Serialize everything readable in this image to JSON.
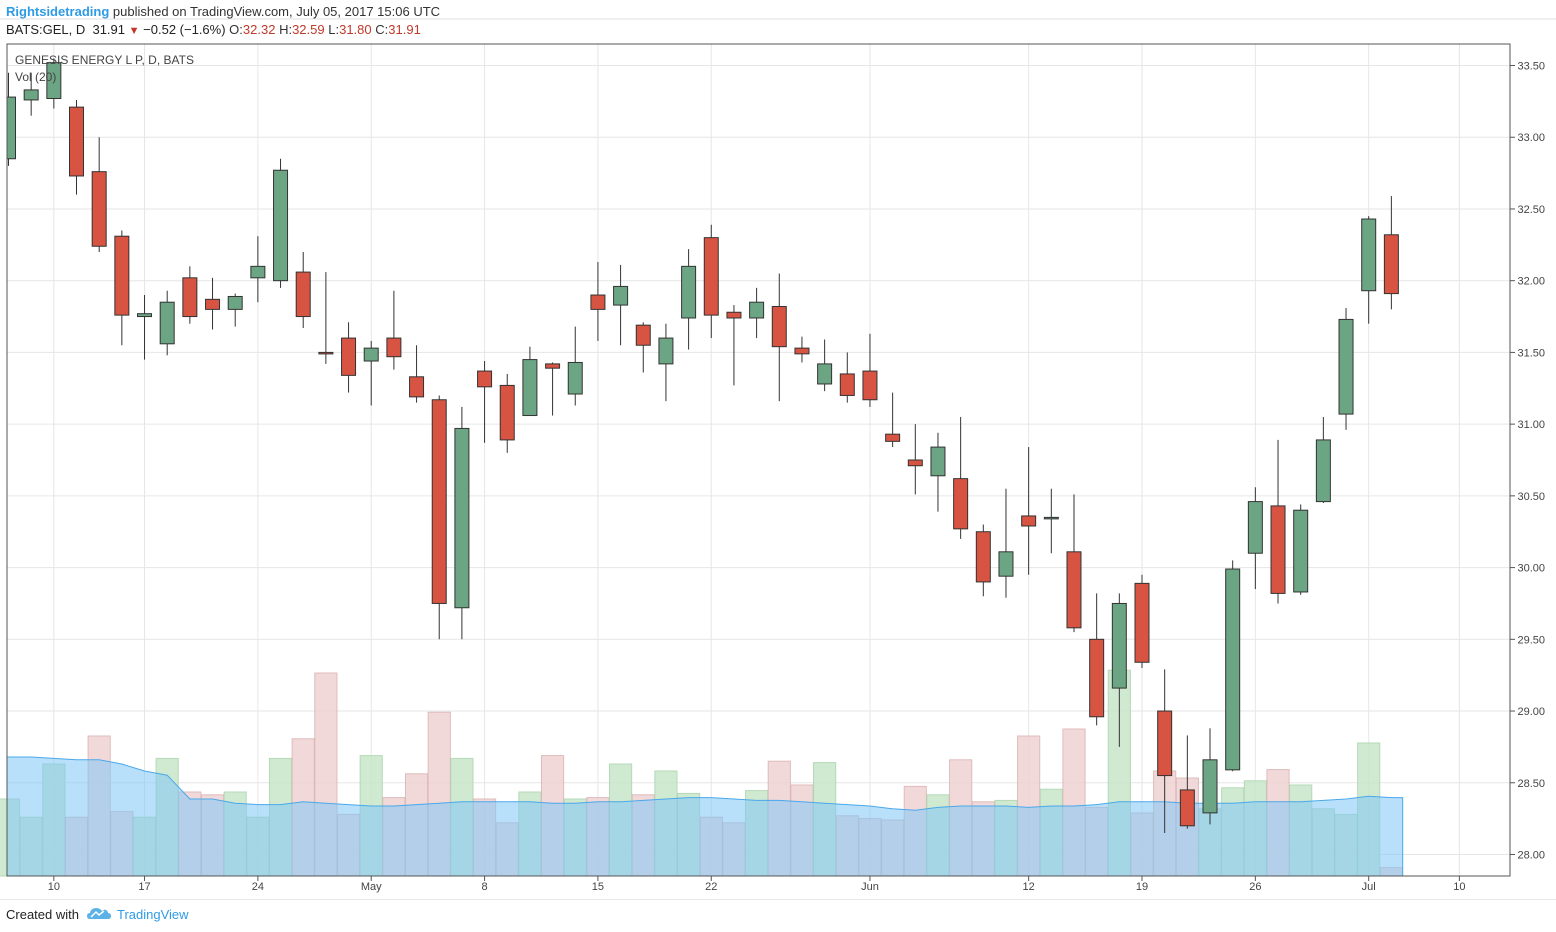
{
  "header": {
    "author": "Rightsidetrading",
    "published": "published on TradingView.com, July 05, 2017 15:06 UTC",
    "symbol": "BATS:GEL, D",
    "last": "31.91",
    "change_icon": "down-triangle-icon",
    "change": "−0.52 (−1.6%)",
    "o_label": "O:",
    "o": "32.32",
    "h_label": "H:",
    "h": "32.59",
    "l_label": "L:",
    "l": "31.80",
    "c_label": "C:",
    "c": "31.91"
  },
  "legend": {
    "title": "GENESIS ENERGY L P, D, BATS",
    "indicator": "Vol (20)"
  },
  "footer": {
    "created": "Created with",
    "logo_icon": "tradingview-cloud-icon",
    "brand": "TradingView"
  },
  "colors": {
    "up": "#6ba583",
    "down": "#d75442",
    "vol_up": "#c8e6c9",
    "vol_down": "#efd3d3",
    "vol_ma": "#7fc6f5",
    "grid": "#e6e6e6",
    "axis_text": "#444444",
    "accent": "#2e9be6"
  },
  "chart_data": {
    "type": "candlestick",
    "title": "GENESIS ENERGY L P, D, BATS",
    "y_axis": {
      "position": "right",
      "ylim": [
        27.85,
        33.65
      ],
      "ticks": [
        "28.00",
        "28.50",
        "29.00",
        "29.50",
        "30.00",
        "30.50",
        "31.00",
        "31.50",
        "32.00",
        "32.50",
        "33.00",
        "33.50"
      ]
    },
    "x_tick_labels": [
      {
        "label": "10",
        "index": 2
      },
      {
        "label": "17",
        "index": 6
      },
      {
        "label": "24",
        "index": 11
      },
      {
        "label": "May",
        "index": 16
      },
      {
        "label": "8",
        "index": 21
      },
      {
        "label": "15",
        "index": 26
      },
      {
        "label": "22",
        "index": 31
      },
      {
        "label": "Jun",
        "index": 38
      },
      {
        "label": "12",
        "index": 45
      },
      {
        "label": "19",
        "index": 50
      },
      {
        "label": "26",
        "index": 55
      },
      {
        "label": "Jul",
        "index": 60
      },
      {
        "label": "10",
        "index": 64
      }
    ],
    "grid": true,
    "ohlc": [
      [
        32.85,
        33.45,
        32.8,
        33.28
      ],
      [
        33.26,
        33.45,
        33.15,
        33.33
      ],
      [
        33.27,
        33.55,
        33.2,
        33.52
      ],
      [
        33.21,
        33.26,
        32.6,
        32.73
      ],
      [
        32.76,
        33.0,
        32.2,
        32.24
      ],
      [
        32.31,
        32.35,
        31.55,
        31.76
      ],
      [
        31.75,
        31.9,
        31.45,
        31.77
      ],
      [
        31.56,
        31.93,
        31.48,
        31.85
      ],
      [
        32.02,
        32.1,
        31.7,
        31.75
      ],
      [
        31.87,
        32.02,
        31.66,
        31.8
      ],
      [
        31.8,
        31.91,
        31.68,
        31.89
      ],
      [
        32.02,
        32.31,
        31.85,
        32.1
      ],
      [
        32.0,
        32.85,
        31.95,
        32.77
      ],
      [
        32.06,
        32.2,
        31.67,
        31.75
      ],
      [
        31.5,
        32.06,
        31.42,
        31.49
      ],
      [
        31.6,
        31.71,
        31.22,
        31.34
      ],
      [
        31.44,
        31.58,
        31.13,
        31.53
      ],
      [
        31.6,
        31.93,
        31.38,
        31.47
      ],
      [
        31.33,
        31.55,
        31.15,
        31.19
      ],
      [
        31.17,
        31.2,
        29.5,
        29.75
      ],
      [
        29.72,
        31.12,
        29.5,
        30.97
      ],
      [
        31.37,
        31.44,
        30.87,
        31.26
      ],
      [
        31.27,
        31.35,
        30.8,
        30.89
      ],
      [
        31.06,
        31.54,
        31.06,
        31.45
      ],
      [
        31.42,
        31.43,
        31.06,
        31.39
      ],
      [
        31.21,
        31.68,
        31.13,
        31.43
      ],
      [
        31.9,
        32.13,
        31.58,
        31.8
      ],
      [
        31.83,
        32.11,
        31.55,
        31.96
      ],
      [
        31.69,
        31.71,
        31.36,
        31.55
      ],
      [
        31.42,
        31.7,
        31.16,
        31.6
      ],
      [
        31.74,
        32.22,
        31.52,
        32.1
      ],
      [
        32.3,
        32.39,
        31.6,
        31.76
      ],
      [
        31.78,
        31.83,
        31.27,
        31.74
      ],
      [
        31.74,
        31.95,
        31.6,
        31.85
      ],
      [
        31.82,
        32.05,
        31.16,
        31.54
      ],
      [
        31.53,
        31.61,
        31.43,
        31.49
      ],
      [
        31.28,
        31.59,
        31.23,
        31.42
      ],
      [
        31.35,
        31.5,
        31.15,
        31.2
      ],
      [
        31.37,
        31.63,
        31.12,
        31.17
      ],
      [
        30.93,
        31.22,
        30.84,
        30.88
      ],
      [
        30.75,
        31.0,
        30.51,
        30.71
      ],
      [
        30.64,
        30.94,
        30.39,
        30.84
      ],
      [
        30.62,
        31.05,
        30.2,
        30.27
      ],
      [
        30.25,
        30.3,
        29.8,
        29.9
      ],
      [
        29.94,
        30.55,
        29.79,
        30.11
      ],
      [
        30.36,
        30.84,
        29.95,
        30.29
      ],
      [
        30.34,
        30.55,
        30.1,
        30.35
      ],
      [
        30.11,
        30.51,
        29.55,
        29.58
      ],
      [
        29.5,
        29.82,
        28.9,
        28.96
      ],
      [
        29.16,
        29.82,
        28.75,
        29.75
      ],
      [
        29.89,
        29.95,
        29.3,
        29.34
      ],
      [
        29.0,
        29.29,
        28.15,
        28.55
      ],
      [
        28.45,
        28.83,
        28.18,
        28.2
      ],
      [
        28.29,
        28.88,
        28.21,
        28.66
      ],
      [
        28.59,
        30.05,
        28.58,
        29.99
      ],
      [
        30.1,
        30.56,
        29.85,
        30.46
      ],
      [
        30.43,
        30.89,
        29.75,
        29.82
      ],
      [
        29.83,
        30.44,
        29.81,
        30.4
      ],
      [
        30.46,
        31.05,
        30.45,
        30.89
      ],
      [
        31.07,
        31.81,
        30.96,
        31.73
      ],
      [
        31.93,
        32.45,
        31.7,
        32.43
      ],
      [
        32.32,
        32.59,
        31.8,
        31.91
      ]
    ],
    "volume_ma_period": 20,
    "volume_relative": [
      0.55,
      0.42,
      0.8,
      0.42,
      1.0,
      0.46,
      0.42,
      0.84,
      0.6,
      0.58,
      0.6,
      0.42,
      0.84,
      0.98,
      1.45,
      0.44,
      0.86,
      0.56,
      0.73,
      1.17,
      0.84,
      0.55,
      0.38,
      0.6,
      0.86,
      0.55,
      0.56,
      0.8,
      0.58,
      0.75,
      0.59,
      0.42,
      0.38,
      0.61,
      0.82,
      0.65,
      0.81,
      0.43,
      0.41,
      0.4,
      0.64,
      0.58,
      0.83,
      0.53,
      0.54,
      1.0,
      0.62,
      1.05,
      0.49,
      1.47,
      0.45,
      0.75,
      0.7,
      0.48,
      0.63,
      0.68,
      0.76,
      0.65,
      0.48,
      0.44,
      0.95,
      0.06
    ],
    "volume_ma_relative": [
      0.85,
      0.85,
      0.84,
      0.83,
      0.83,
      0.8,
      0.75,
      0.72,
      0.55,
      0.55,
      0.52,
      0.51,
      0.51,
      0.53,
      0.52,
      0.51,
      0.5,
      0.5,
      0.51,
      0.52,
      0.53,
      0.53,
      0.53,
      0.53,
      0.52,
      0.52,
      0.53,
      0.53,
      0.54,
      0.55,
      0.56,
      0.56,
      0.55,
      0.54,
      0.54,
      0.53,
      0.52,
      0.51,
      0.5,
      0.48,
      0.47,
      0.49,
      0.5,
      0.5,
      0.5,
      0.49,
      0.5,
      0.5,
      0.51,
      0.53,
      0.53,
      0.53,
      0.52,
      0.52,
      0.52,
      0.53,
      0.53,
      0.53,
      0.54,
      0.55,
      0.57,
      0.56
    ]
  }
}
